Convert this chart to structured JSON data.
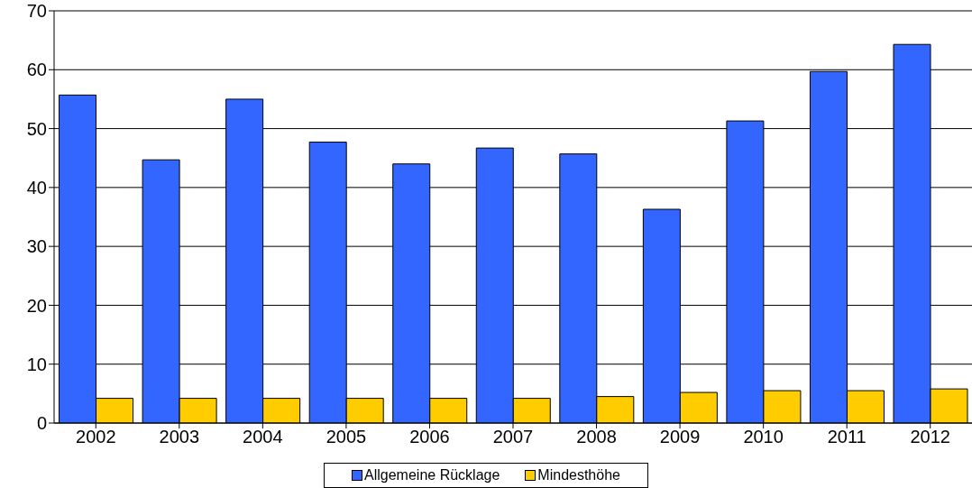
{
  "chart_data": {
    "type": "bar",
    "categories": [
      "2002",
      "2003",
      "2004",
      "2005",
      "2006",
      "2007",
      "2008",
      "2009",
      "2010",
      "2011",
      "2012"
    ],
    "series": [
      {
        "name": "Allgemeine Rücklage",
        "color": "#3366ff",
        "values": [
          55.7,
          44.7,
          55,
          47.7,
          44,
          46.7,
          45.7,
          36.3,
          51.3,
          59.7,
          64.3
        ]
      },
      {
        "name": "Mindesthöhe",
        "color": "#ffcc00",
        "values": [
          4.2,
          4.2,
          4.2,
          4.2,
          4.2,
          4.2,
          4.5,
          5.2,
          5.5,
          5.5,
          5.8
        ]
      }
    ],
    "ylim": [
      0,
      70
    ],
    "yticks": [
      0,
      10,
      20,
      30,
      40,
      50,
      60,
      70
    ],
    "grid": "y",
    "legend": "bottom"
  }
}
